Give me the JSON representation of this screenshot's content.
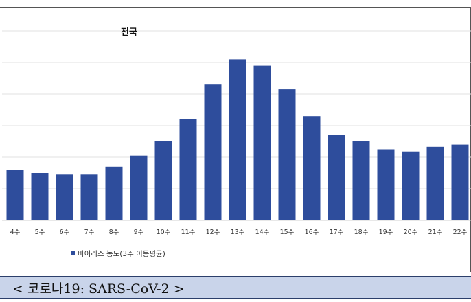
{
  "caption": "< 코로나19: SARS-CoV-2 >",
  "chart_data": {
    "type": "bar",
    "title": "전국",
    "categories": [
      "4주",
      "5주",
      "6주",
      "7주",
      "8주",
      "9주",
      "10주",
      "11주",
      "12주",
      "13주",
      "14주",
      "15주",
      "16주",
      "17주",
      "18주",
      "19주",
      "20주",
      "21주",
      "22주"
    ],
    "series": [
      {
        "name": "바이러스 농도(3주 이동평균)",
        "color": "#2e4d9c",
        "values": [
          16,
          15,
          14.5,
          14.5,
          17,
          20.5,
          25,
          32,
          43,
          51,
          49,
          41.5,
          33,
          27,
          25,
          22.5,
          21.8,
          23.3,
          24
        ]
      }
    ],
    "ylim": [
      0,
      60
    ],
    "grid": true,
    "legend_position": "bottom"
  }
}
